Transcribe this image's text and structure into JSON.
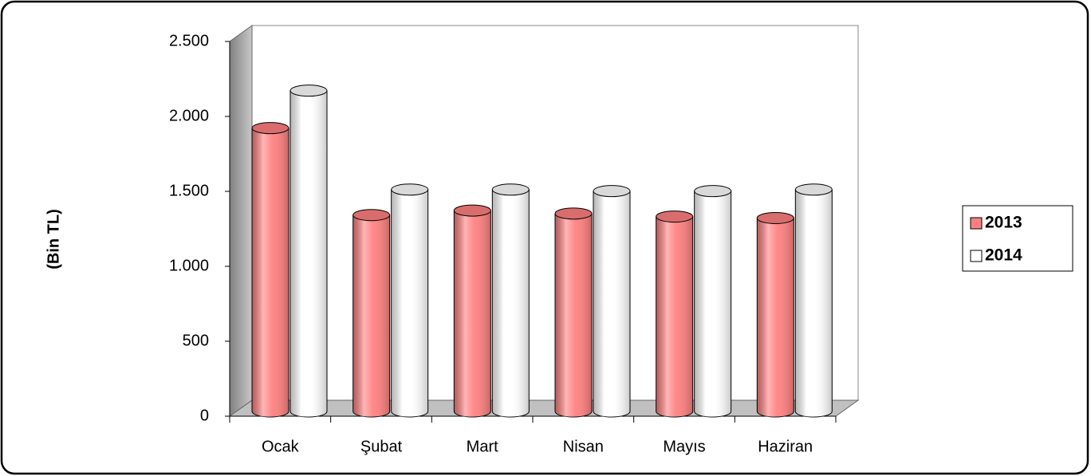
{
  "chart_data": {
    "type": "bar3d",
    "ylabel": "(Bin TL)",
    "categories": [
      "Ocak",
      "Şubat",
      "Mart",
      "Nisan",
      "Mayıs",
      "Haziran"
    ],
    "series": [
      {
        "name": "2013",
        "color": "#ff8080",
        "values": [
          1890,
          1310,
          1340,
          1320,
          1300,
          1290
        ]
      },
      {
        "name": "2014",
        "color": "#ffffff",
        "values": [
          2140,
          1480,
          1480,
          1470,
          1470,
          1480
        ]
      }
    ],
    "ylim": [
      0,
      2500
    ],
    "yticks": [
      0,
      500,
      {
        "value": 1000,
        "label": "1.000"
      },
      {
        "value": 1500,
        "label": "1.500"
      },
      {
        "value": 2000,
        "label": "2.000"
      },
      {
        "value": 2500,
        "label": "2.500"
      }
    ],
    "legend": "right"
  }
}
